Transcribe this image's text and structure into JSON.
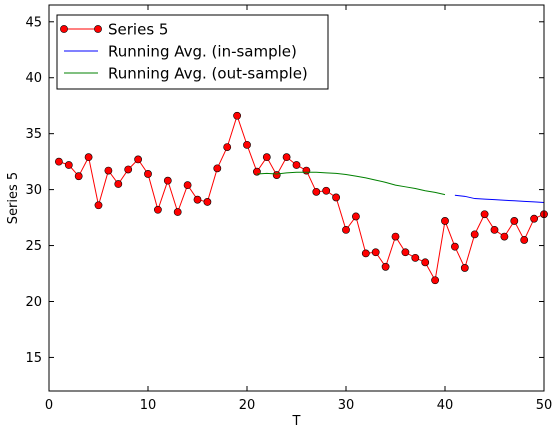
{
  "chart_data": {
    "type": "line",
    "xlabel": "T",
    "ylabel": "Series 5",
    "xlim": [
      0,
      50
    ],
    "ylim": [
      12,
      46.5
    ],
    "xticks": [
      0,
      10,
      20,
      30,
      40,
      50
    ],
    "yticks": [
      15,
      20,
      25,
      30,
      35,
      40,
      45
    ],
    "grid": false,
    "legend_position": "top-left",
    "series": [
      {
        "name": "Series 5",
        "color": "#ff0000",
        "marker": "circle",
        "x": [
          1,
          2,
          3,
          4,
          5,
          6,
          7,
          8,
          9,
          10,
          11,
          12,
          13,
          14,
          15,
          16,
          17,
          18,
          19,
          20,
          21,
          22,
          23,
          24,
          25,
          26,
          27,
          28,
          29,
          30,
          31,
          32,
          33,
          34,
          35,
          36,
          37,
          38,
          39,
          40,
          41,
          42,
          43,
          44,
          45,
          46,
          47,
          48,
          49,
          50
        ],
        "values": [
          32.5,
          32.2,
          31.2,
          32.9,
          28.6,
          31.7,
          30.5,
          31.8,
          32.7,
          31.4,
          28.2,
          30.8,
          28.0,
          30.4,
          29.1,
          28.9,
          31.9,
          33.8,
          36.6,
          34.0,
          31.6,
          32.9,
          31.3,
          32.9,
          32.2,
          31.7,
          29.8,
          29.9,
          29.3,
          26.4,
          27.6,
          24.3,
          24.4,
          23.1,
          25.8,
          24.4,
          23.9,
          23.5,
          21.9,
          27.2,
          24.9,
          23.0,
          26.0,
          27.8,
          26.4,
          25.8,
          27.2,
          25.5,
          27.4,
          27.8
        ]
      },
      {
        "name": "Running Avg. (in-sample)",
        "color": "#0000ff",
        "marker": "none",
        "x": [
          41,
          42,
          43,
          44,
          45,
          46,
          47,
          48,
          49,
          50
        ],
        "values": [
          29.5,
          29.4,
          29.2,
          29.15,
          29.1,
          29.05,
          29.0,
          28.95,
          28.9,
          28.85
        ]
      },
      {
        "name": "Running Avg. (out-sample)",
        "color": "#008000",
        "marker": "none",
        "x": [
          21,
          22,
          23,
          24,
          25,
          26,
          27,
          28,
          29,
          30,
          31,
          32,
          33,
          34,
          35,
          36,
          37,
          38,
          39,
          40
        ],
        "values": [
          31.4,
          31.45,
          31.4,
          31.5,
          31.55,
          31.55,
          31.55,
          31.5,
          31.45,
          31.35,
          31.2,
          31.05,
          30.85,
          30.65,
          30.4,
          30.25,
          30.1,
          29.9,
          29.75,
          29.55
        ]
      }
    ]
  }
}
